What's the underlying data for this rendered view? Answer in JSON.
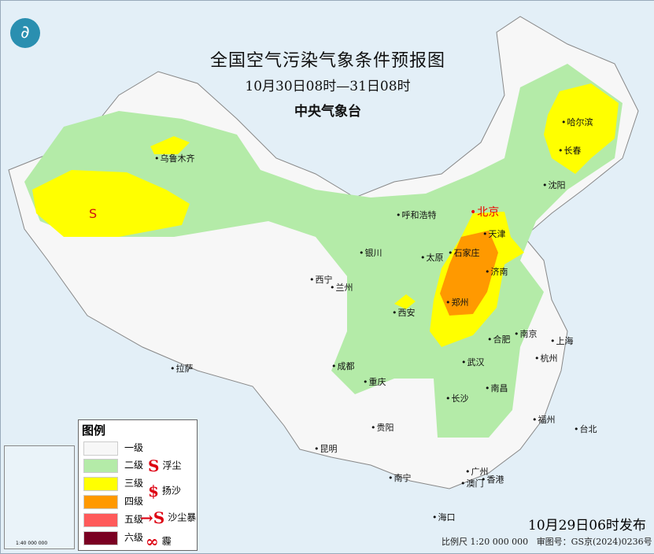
{
  "header": {
    "title": "全国空气污染气象条件预报图",
    "period": "10月30日08时—31日08时",
    "issuer": "中央气象台"
  },
  "colors": {
    "level1": "#f7f7f7",
    "level2": "#b4eba8",
    "level3": "#ffff00",
    "level4": "#ff9900",
    "level5": "#ff5a5a",
    "level6": "#7a0022",
    "sea": "#e3eff7",
    "dust": "#d01010"
  },
  "legend": {
    "title": "图例",
    "levels": [
      "一级",
      "二级",
      "三级",
      "四级",
      "五级",
      "六级"
    ],
    "symbols": [
      {
        "icon": "floating-dust-icon",
        "label": "浮尘"
      },
      {
        "icon": "blowing-sand-icon",
        "label": "扬沙"
      },
      {
        "icon": "sandstorm-icon",
        "label": "沙尘暴"
      },
      {
        "icon": "haze-icon",
        "label": "霾"
      }
    ]
  },
  "map_markers": {
    "dust_symbol": "S"
  },
  "cities": [
    "乌鲁木齐",
    "哈尔滨",
    "长春",
    "沈阳",
    "北京",
    "天津",
    "呼和浩特",
    "石家庄",
    "太原",
    "银川",
    "济南",
    "西宁",
    "兰州",
    "郑州",
    "西安",
    "合肥",
    "南京",
    "上海",
    "杭州",
    "武汉",
    "拉萨",
    "成都",
    "重庆",
    "长沙",
    "南昌",
    "贵阳",
    "福州",
    "台北",
    "昆明",
    "南宁",
    "广州",
    "澳门",
    "香港",
    "海口"
  ],
  "inset": {
    "scale": "1:40 000 000"
  },
  "footer": {
    "issued": "10月29日06时发布",
    "scale": "比例尺 1:20 000 000",
    "approval": "审图号：GS京(2024)0236号"
  }
}
